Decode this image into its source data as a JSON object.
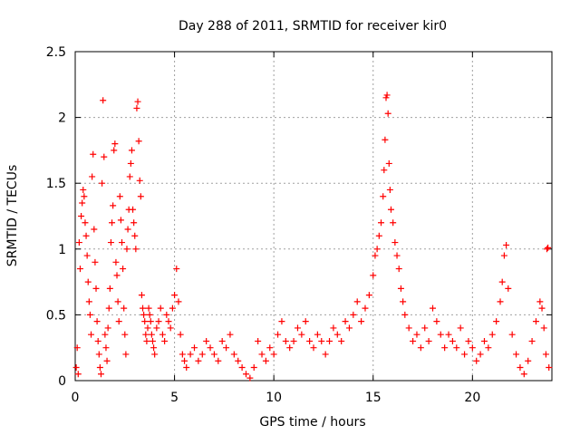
{
  "chart_data": {
    "type": "scatter",
    "title": "Day 288 of 2011, SRMTID for receiver kir0",
    "xlabel": "GPS time / hours",
    "ylabel": "SRMTID / TECUs",
    "xlim": [
      0,
      24
    ],
    "ylim": [
      0,
      2.5
    ],
    "xticks": [
      "0",
      "5",
      "10",
      "15",
      "20"
    ],
    "xtick_values": [
      0,
      5,
      10,
      15,
      20
    ],
    "yticks": [
      "0",
      "0.5",
      "1",
      "1.5",
      "2",
      "2.5"
    ],
    "ytick_values": [
      0,
      0.5,
      1,
      1.5,
      2,
      2.5
    ],
    "grid": true,
    "marker": "+",
    "color": "#ff0000",
    "series": [
      {
        "name": "kir0",
        "points": [
          [
            0.05,
            0.1
          ],
          [
            0.1,
            0.25
          ],
          [
            0.15,
            0.05
          ],
          [
            0.2,
            1.05
          ],
          [
            0.25,
            0.85
          ],
          [
            0.3,
            1.25
          ],
          [
            0.35,
            1.35
          ],
          [
            0.4,
            1.45
          ],
          [
            0.45,
            1.4
          ],
          [
            0.5,
            1.2
          ],
          [
            0.55,
            1.1
          ],
          [
            0.6,
            0.95
          ],
          [
            0.65,
            0.75
          ],
          [
            0.7,
            0.6
          ],
          [
            0.75,
            0.5
          ],
          [
            0.8,
            0.35
          ],
          [
            0.85,
            1.55
          ],
          [
            0.9,
            1.72
          ],
          [
            0.95,
            1.15
          ],
          [
            1.0,
            0.9
          ],
          [
            1.05,
            0.7
          ],
          [
            1.1,
            0.45
          ],
          [
            1.15,
            0.3
          ],
          [
            1.2,
            0.2
          ],
          [
            1.25,
            0.1
          ],
          [
            1.3,
            0.05
          ],
          [
            1.35,
            1.5
          ],
          [
            1.4,
            2.13
          ],
          [
            1.45,
            1.7
          ],
          [
            1.5,
            0.35
          ],
          [
            1.55,
            0.25
          ],
          [
            1.6,
            0.15
          ],
          [
            1.65,
            0.4
          ],
          [
            1.7,
            0.55
          ],
          [
            1.75,
            0.7
          ],
          [
            1.8,
            1.05
          ],
          [
            1.85,
            1.2
          ],
          [
            1.9,
            1.33
          ],
          [
            1.95,
            1.75
          ],
          [
            2.0,
            1.8
          ],
          [
            2.05,
            0.9
          ],
          [
            2.1,
            0.8
          ],
          [
            2.15,
            0.6
          ],
          [
            2.2,
            0.45
          ],
          [
            2.25,
            1.4
          ],
          [
            2.3,
            1.22
          ],
          [
            2.35,
            1.05
          ],
          [
            2.4,
            0.85
          ],
          [
            2.45,
            0.55
          ],
          [
            2.5,
            0.35
          ],
          [
            2.55,
            0.2
          ],
          [
            2.6,
            1.0
          ],
          [
            2.65,
            1.15
          ],
          [
            2.7,
            1.3
          ],
          [
            2.75,
            1.55
          ],
          [
            2.8,
            1.65
          ],
          [
            2.85,
            1.75
          ],
          [
            2.9,
            1.3
          ],
          [
            2.95,
            1.2
          ],
          [
            3.0,
            1.1
          ],
          [
            3.05,
            1.0
          ],
          [
            3.1,
            2.07
          ],
          [
            3.15,
            2.12
          ],
          [
            3.2,
            1.82
          ],
          [
            3.25,
            1.52
          ],
          [
            3.3,
            1.4
          ],
          [
            3.35,
            0.65
          ],
          [
            3.4,
            0.55
          ],
          [
            3.45,
            0.5
          ],
          [
            3.5,
            0.45
          ],
          [
            3.55,
            0.35
          ],
          [
            3.6,
            0.3
          ],
          [
            3.65,
            0.4
          ],
          [
            3.7,
            0.55
          ],
          [
            3.75,
            0.5
          ],
          [
            3.8,
            0.45
          ],
          [
            3.85,
            0.35
          ],
          [
            3.9,
            0.3
          ],
          [
            3.95,
            0.25
          ],
          [
            4.0,
            0.2
          ],
          [
            4.1,
            0.4
          ],
          [
            4.2,
            0.45
          ],
          [
            4.3,
            0.55
          ],
          [
            4.4,
            0.35
          ],
          [
            4.5,
            0.3
          ],
          [
            4.6,
            0.5
          ],
          [
            4.7,
            0.45
          ],
          [
            4.8,
            0.4
          ],
          [
            4.9,
            0.55
          ],
          [
            5.0,
            0.65
          ],
          [
            5.1,
            0.85
          ],
          [
            5.2,
            0.6
          ],
          [
            5.3,
            0.35
          ],
          [
            5.4,
            0.2
          ],
          [
            5.5,
            0.15
          ],
          [
            5.6,
            0.1
          ],
          [
            5.8,
            0.2
          ],
          [
            6.0,
            0.25
          ],
          [
            6.2,
            0.15
          ],
          [
            6.4,
            0.2
          ],
          [
            6.6,
            0.3
          ],
          [
            6.8,
            0.25
          ],
          [
            7.0,
            0.2
          ],
          [
            7.2,
            0.15
          ],
          [
            7.4,
            0.3
          ],
          [
            7.6,
            0.25
          ],
          [
            7.8,
            0.35
          ],
          [
            8.0,
            0.2
          ],
          [
            8.2,
            0.15
          ],
          [
            8.4,
            0.1
          ],
          [
            8.6,
            0.05
          ],
          [
            8.8,
            0.02
          ],
          [
            9.0,
            0.1
          ],
          [
            9.2,
            0.3
          ],
          [
            9.4,
            0.2
          ],
          [
            9.6,
            0.15
          ],
          [
            9.8,
            0.25
          ],
          [
            10.0,
            0.2
          ],
          [
            10.2,
            0.35
          ],
          [
            10.4,
            0.45
          ],
          [
            10.6,
            0.3
          ],
          [
            10.8,
            0.25
          ],
          [
            11.0,
            0.3
          ],
          [
            11.2,
            0.4
          ],
          [
            11.4,
            0.35
          ],
          [
            11.6,
            0.45
          ],
          [
            11.8,
            0.3
          ],
          [
            12.0,
            0.25
          ],
          [
            12.2,
            0.35
          ],
          [
            12.4,
            0.3
          ],
          [
            12.6,
            0.2
          ],
          [
            12.8,
            0.3
          ],
          [
            13.0,
            0.4
          ],
          [
            13.2,
            0.35
          ],
          [
            13.4,
            0.3
          ],
          [
            13.6,
            0.45
          ],
          [
            13.8,
            0.4
          ],
          [
            14.0,
            0.5
          ],
          [
            14.2,
            0.6
          ],
          [
            14.4,
            0.45
          ],
          [
            14.6,
            0.55
          ],
          [
            14.8,
            0.65
          ],
          [
            15.0,
            0.8
          ],
          [
            15.1,
            0.95
          ],
          [
            15.2,
            1.0
          ],
          [
            15.3,
            1.1
          ],
          [
            15.4,
            1.2
          ],
          [
            15.5,
            1.4
          ],
          [
            15.55,
            1.6
          ],
          [
            15.6,
            1.83
          ],
          [
            15.65,
            2.15
          ],
          [
            15.7,
            2.17
          ],
          [
            15.75,
            2.03
          ],
          [
            15.8,
            1.65
          ],
          [
            15.85,
            1.45
          ],
          [
            15.9,
            1.3
          ],
          [
            16.0,
            1.2
          ],
          [
            16.1,
            1.05
          ],
          [
            16.2,
            0.95
          ],
          [
            16.3,
            0.85
          ],
          [
            16.4,
            0.7
          ],
          [
            16.5,
            0.6
          ],
          [
            16.6,
            0.5
          ],
          [
            16.8,
            0.4
          ],
          [
            17.0,
            0.3
          ],
          [
            17.2,
            0.35
          ],
          [
            17.4,
            0.25
          ],
          [
            17.6,
            0.4
          ],
          [
            17.8,
            0.3
          ],
          [
            18.0,
            0.55
          ],
          [
            18.2,
            0.45
          ],
          [
            18.4,
            0.35
          ],
          [
            18.6,
            0.25
          ],
          [
            18.8,
            0.35
          ],
          [
            19.0,
            0.3
          ],
          [
            19.2,
            0.25
          ],
          [
            19.4,
            0.4
          ],
          [
            19.6,
            0.2
          ],
          [
            19.8,
            0.3
          ],
          [
            20.0,
            0.25
          ],
          [
            20.2,
            0.15
          ],
          [
            20.4,
            0.2
          ],
          [
            20.6,
            0.3
          ],
          [
            20.8,
            0.25
          ],
          [
            21.0,
            0.35
          ],
          [
            21.2,
            0.45
          ],
          [
            21.4,
            0.6
          ],
          [
            21.5,
            0.75
          ],
          [
            21.6,
            0.95
          ],
          [
            21.7,
            1.03
          ],
          [
            21.8,
            0.7
          ],
          [
            22.0,
            0.35
          ],
          [
            22.2,
            0.2
          ],
          [
            22.4,
            0.1
          ],
          [
            22.6,
            0.05
          ],
          [
            22.8,
            0.15
          ],
          [
            23.0,
            0.3
          ],
          [
            23.2,
            0.45
          ],
          [
            23.4,
            0.6
          ],
          [
            23.5,
            0.55
          ],
          [
            23.6,
            0.4
          ],
          [
            23.7,
            0.2
          ],
          [
            23.75,
            1.0
          ],
          [
            23.8,
            1.01
          ],
          [
            23.85,
            0.1
          ]
        ]
      }
    ]
  }
}
